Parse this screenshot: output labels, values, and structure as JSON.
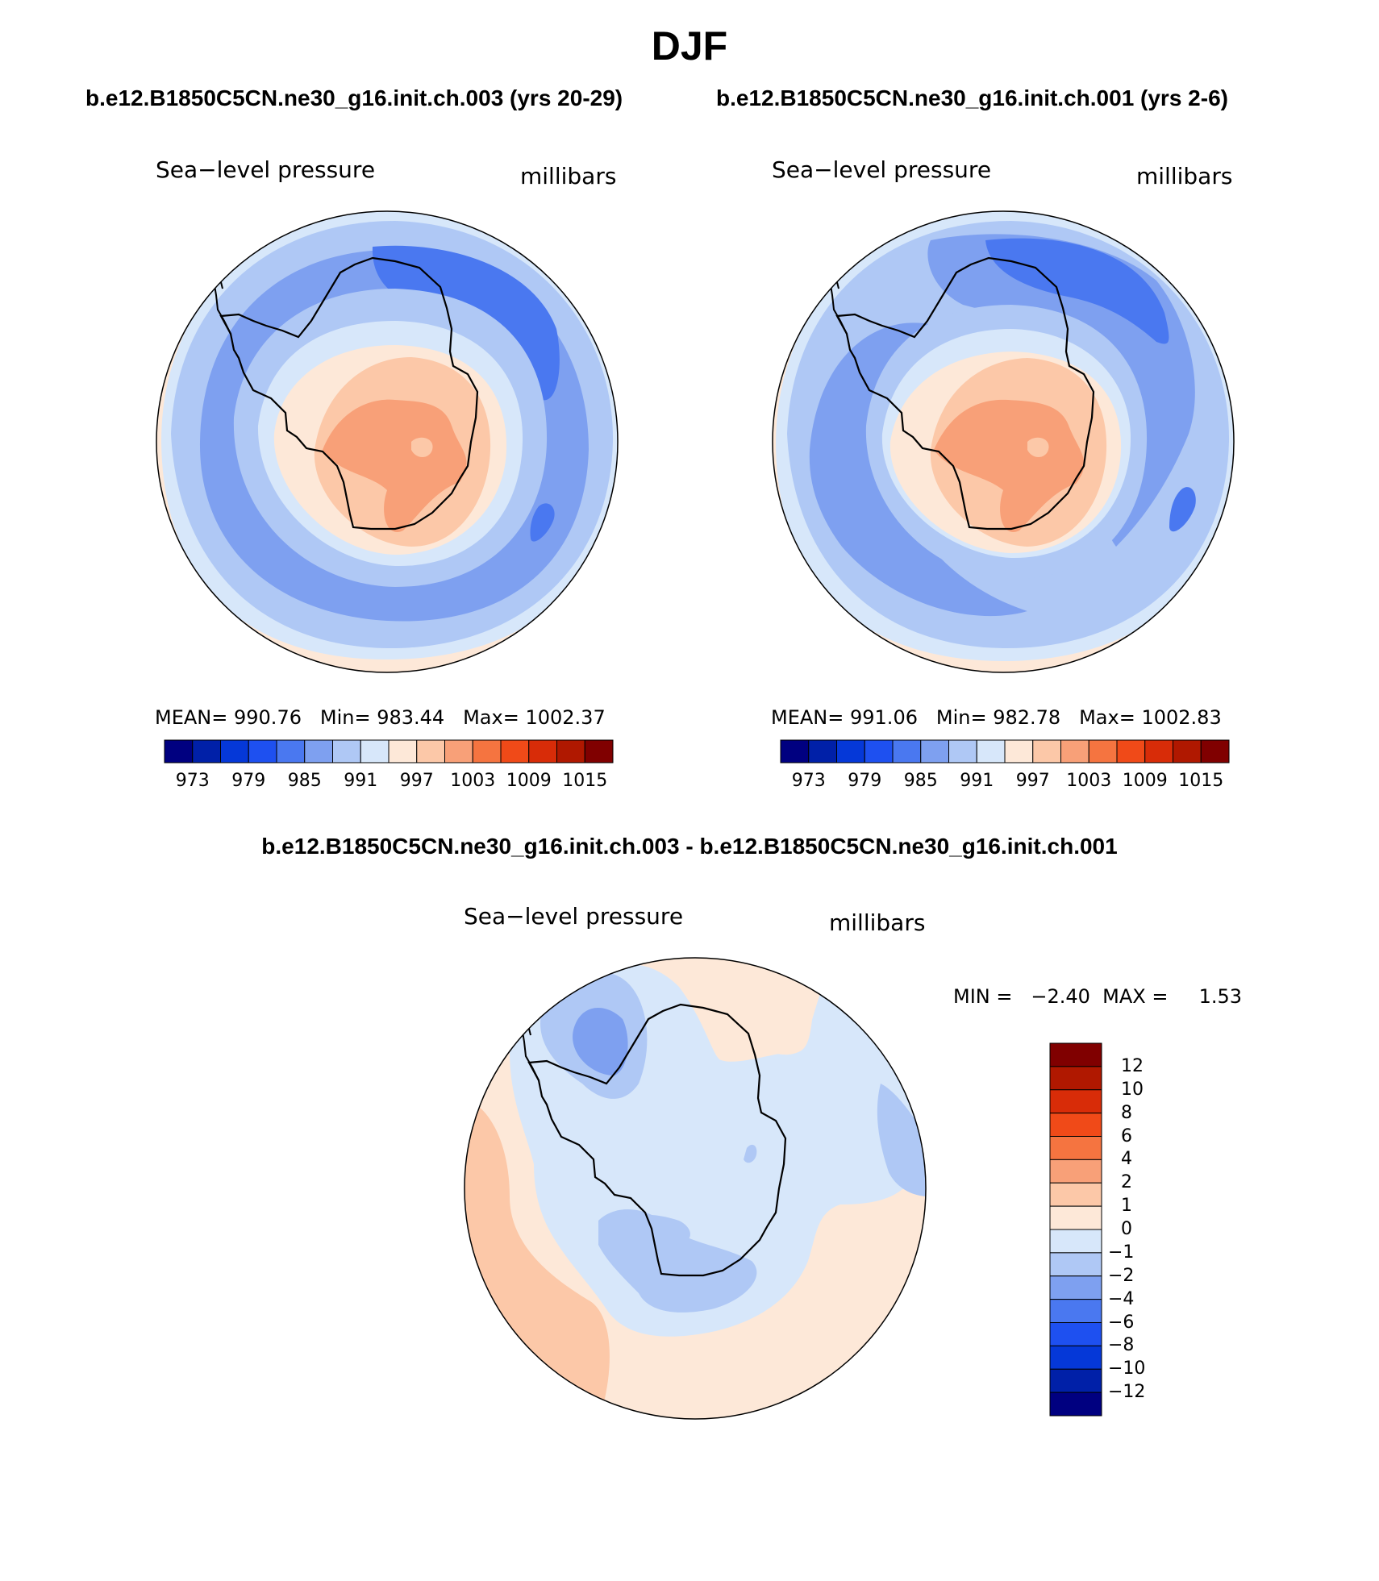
{
  "figure_title": "DJF",
  "panel_left": {
    "case": "b.e12.B1850C5CN.ne30_g16.init.ch.003 (yrs 20-29)",
    "variable": "Sea−level pressure",
    "units": "millibars",
    "mean_label": "MEAN=",
    "mean": "990.76",
    "min_label": "Min=",
    "min": "983.44",
    "max_label": "Max=",
    "max": "1002.37"
  },
  "panel_right": {
    "case": "b.e12.B1850C5CN.ne30_g16.init.ch.001 (yrs 2-6)",
    "variable": "Sea−level pressure",
    "units": "millibars",
    "mean_label": "MEAN=",
    "mean": "991.06",
    "min_label": "Min=",
    "min": "982.78",
    "max_label": "Max=",
    "max": "1002.83"
  },
  "panel_diff": {
    "title": "b.e12.B1850C5CN.ne30_g16.init.ch.003 - b.e12.B1850C5CN.ne30_g16.init.ch.001",
    "variable": "Sea−level pressure",
    "units": "millibars",
    "minmax_text": "MIN =   −2.40  MAX =     1.53"
  },
  "colorbar_abs": {
    "tick_labels": [
      "973",
      "979",
      "985",
      "991",
      "997",
      "1003",
      "1009",
      "1015"
    ],
    "colors": [
      "#000080",
      "#0020a8",
      "#0538d8",
      "#1e50f0",
      "#4a78f0",
      "#7ea0f0",
      "#afc8f5",
      "#d7e7fa",
      "#fde8d8",
      "#fcc8a8",
      "#f8a078",
      "#f57440",
      "#f04a18",
      "#d82c08",
      "#b01800",
      "#800000"
    ]
  },
  "colorbar_diff": {
    "tick_labels": [
      "12",
      "10",
      "8",
      "6",
      "4",
      "2",
      "1",
      "0",
      "−1",
      "−2",
      "−4",
      "−6",
      "−8",
      "−10",
      "−12"
    ],
    "colors": [
      "#800000",
      "#b01800",
      "#d82c08",
      "#f04a18",
      "#f57440",
      "#f8a078",
      "#fcc8a8",
      "#fde8d8",
      "#d7e7fa",
      "#afc8f5",
      "#7ea0f0",
      "#4a78f0",
      "#1e50f0",
      "#0538d8",
      "#0020a8",
      "#000080"
    ]
  },
  "chart_data": [
    {
      "type": "heatmap",
      "title": "Sea−level pressure",
      "subtitle": "b.e12.B1850C5CN.ne30_g16.init.ch.003 (yrs 20-29)",
      "projection": "south polar stereographic",
      "units": "millibars",
      "stats": {
        "mean": 990.76,
        "min": 983.44,
        "max": 1002.37
      },
      "contour_levels": [
        973,
        976,
        979,
        982,
        985,
        988,
        991,
        994,
        997,
        1000,
        1003,
        1006,
        1009,
        1012,
        1015
      ],
      "colorbar_ticks": [
        973,
        979,
        985,
        991,
        997,
        1003,
        1009,
        1015
      ]
    },
    {
      "type": "heatmap",
      "title": "Sea−level pressure",
      "subtitle": "b.e12.B1850C5CN.ne30_g16.init.ch.001 (yrs 2-6)",
      "projection": "south polar stereographic",
      "units": "millibars",
      "stats": {
        "mean": 991.06,
        "min": 982.78,
        "max": 1002.83
      },
      "contour_levels": [
        973,
        976,
        979,
        982,
        985,
        988,
        991,
        994,
        997,
        1000,
        1003,
        1006,
        1009,
        1012,
        1015
      ],
      "colorbar_ticks": [
        973,
        979,
        985,
        991,
        997,
        1003,
        1009,
        1015
      ]
    },
    {
      "type": "heatmap",
      "title": "Sea−level pressure",
      "subtitle": "b.e12.B1850C5CN.ne30_g16.init.ch.003 - b.e12.B1850C5CN.ne30_g16.init.ch.001",
      "projection": "south polar stereographic",
      "units": "millibars",
      "stats": {
        "min": -2.4,
        "max": 1.53
      },
      "contour_levels": [
        -12,
        -10,
        -8,
        -6,
        -4,
        -2,
        -1,
        0,
        1,
        2,
        4,
        6,
        8,
        10,
        12
      ],
      "colorbar_ticks": [
        12,
        10,
        8,
        6,
        4,
        2,
        1,
        0,
        -1,
        -2,
        -4,
        -6,
        -8,
        -10,
        -12
      ]
    }
  ]
}
